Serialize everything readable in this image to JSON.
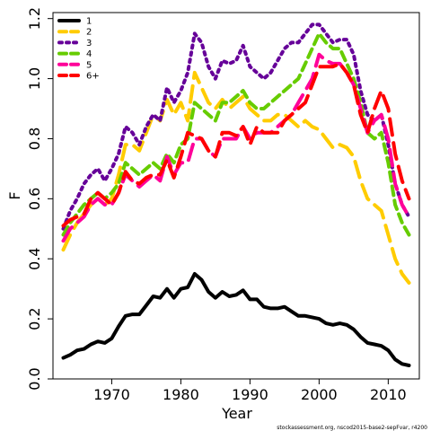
{
  "chart_data": {
    "type": "line",
    "xlabel": "Year",
    "ylabel": "F",
    "xlim": [
      1961.5,
      2014.5
    ],
    "ylim": [
      0.0,
      1.22
    ],
    "xticks": [
      1970,
      1980,
      1990,
      2000,
      2010
    ],
    "yticks": [
      0.0,
      0.2,
      0.4,
      0.6,
      0.8,
      1.0,
      1.2
    ],
    "ytick_labels": [
      "0.0",
      "0.2",
      "0.4",
      "0.6",
      "0.8",
      "1.0",
      "1.2"
    ],
    "footer": "stockassessment.org, nscod2015-base2-sepFvar, r4200",
    "legend_position": "top-left",
    "x": [
      1963,
      1964,
      1965,
      1966,
      1967,
      1968,
      1969,
      1970,
      1971,
      1972,
      1973,
      1974,
      1975,
      1976,
      1977,
      1978,
      1979,
      1980,
      1981,
      1982,
      1983,
      1984,
      1985,
      1986,
      1987,
      1988,
      1989,
      1990,
      1991,
      1992,
      1993,
      1994,
      1995,
      1996,
      1997,
      1998,
      1999,
      2000,
      2001,
      2002,
      2003,
      2004,
      2005,
      2006,
      2007,
      2008,
      2009,
      2010,
      2011,
      2012,
      2013
    ],
    "series": [
      {
        "name": "1",
        "color": "#000000",
        "dash": "solid",
        "values": [
          0.07,
          0.08,
          0.095,
          0.1,
          0.115,
          0.125,
          0.12,
          0.135,
          0.175,
          0.21,
          0.215,
          0.215,
          0.245,
          0.275,
          0.27,
          0.3,
          0.27,
          0.3,
          0.305,
          0.35,
          0.33,
          0.29,
          0.27,
          0.29,
          0.275,
          0.28,
          0.295,
          0.265,
          0.265,
          0.24,
          0.235,
          0.235,
          0.24,
          0.225,
          0.21,
          0.21,
          0.205,
          0.2,
          0.185,
          0.18,
          0.185,
          0.18,
          0.165,
          0.14,
          0.12,
          0.115,
          0.11,
          0.095,
          0.065,
          0.05,
          0.045
        ]
      },
      {
        "name": "2",
        "color": "#FFCC00",
        "dash": "longdash",
        "values": [
          0.43,
          0.48,
          0.52,
          0.55,
          0.58,
          0.6,
          0.58,
          0.6,
          0.68,
          0.78,
          0.78,
          0.76,
          0.82,
          0.88,
          0.86,
          0.93,
          0.88,
          0.92,
          0.86,
          1.02,
          0.97,
          0.92,
          0.9,
          0.93,
          0.9,
          0.92,
          0.94,
          0.9,
          0.88,
          0.86,
          0.86,
          0.88,
          0.88,
          0.86,
          0.84,
          0.86,
          0.84,
          0.83,
          0.8,
          0.77,
          0.78,
          0.77,
          0.74,
          0.66,
          0.6,
          0.58,
          0.56,
          0.48,
          0.4,
          0.35,
          0.32
        ]
      },
      {
        "name": "3",
        "color": "#660099",
        "dash": "dot",
        "values": [
          0.5,
          0.56,
          0.6,
          0.65,
          0.68,
          0.7,
          0.66,
          0.7,
          0.75,
          0.84,
          0.82,
          0.78,
          0.84,
          0.88,
          0.86,
          0.97,
          0.92,
          0.96,
          1.02,
          1.15,
          1.12,
          1.04,
          1.0,
          1.06,
          1.05,
          1.06,
          1.11,
          1.04,
          1.02,
          1.0,
          1.02,
          1.06,
          1.1,
          1.12,
          1.12,
          1.15,
          1.18,
          1.18,
          1.15,
          1.12,
          1.13,
          1.13,
          1.08,
          0.96,
          0.88,
          0.86,
          0.88,
          0.78,
          0.65,
          0.58,
          0.54
        ]
      },
      {
        "name": "4",
        "color": "#66CC00",
        "dash": "dash",
        "values": [
          0.48,
          0.52,
          0.55,
          0.58,
          0.6,
          0.62,
          0.6,
          0.62,
          0.65,
          0.72,
          0.7,
          0.68,
          0.7,
          0.72,
          0.7,
          0.75,
          0.72,
          0.78,
          0.8,
          0.92,
          0.9,
          0.88,
          0.86,
          0.92,
          0.92,
          0.94,
          0.96,
          0.92,
          0.9,
          0.9,
          0.92,
          0.94,
          0.96,
          0.98,
          1.0,
          1.05,
          1.1,
          1.15,
          1.12,
          1.1,
          1.1,
          1.05,
          1.0,
          0.92,
          0.82,
          0.8,
          0.82,
          0.72,
          0.58,
          0.52,
          0.48
        ]
      },
      {
        "name": "5",
        "color": "#FF0099",
        "dash": "longdash",
        "values": [
          0.46,
          0.5,
          0.52,
          0.54,
          0.58,
          0.6,
          0.58,
          0.58,
          0.62,
          0.68,
          0.66,
          0.64,
          0.66,
          0.68,
          0.66,
          0.74,
          0.68,
          0.72,
          0.72,
          0.8,
          0.8,
          0.76,
          0.74,
          0.8,
          0.8,
          0.8,
          0.84,
          0.8,
          0.82,
          0.82,
          0.82,
          0.84,
          0.86,
          0.88,
          0.92,
          0.96,
          1.0,
          1.08,
          1.06,
          1.05,
          1.05,
          1.02,
          0.98,
          0.9,
          0.82,
          0.86,
          0.88,
          0.8,
          0.65,
          0.58,
          0.54
        ]
      },
      {
        "name": "6+",
        "color": "#FF0000",
        "dash": "longdash",
        "values": [
          0.51,
          0.53,
          0.54,
          0.55,
          0.6,
          0.62,
          0.6,
          0.58,
          0.62,
          0.69,
          0.66,
          0.65,
          0.67,
          0.68,
          0.68,
          0.73,
          0.67,
          0.74,
          0.82,
          0.81,
          0.8,
          0.76,
          0.74,
          0.82,
          0.82,
          0.81,
          0.84,
          0.78,
          0.84,
          0.82,
          0.82,
          0.82,
          0.86,
          0.88,
          0.9,
          0.92,
          0.98,
          1.04,
          1.04,
          1.04,
          1.05,
          1.02,
          0.98,
          0.88,
          0.82,
          0.9,
          0.96,
          0.9,
          0.75,
          0.66,
          0.6
        ]
      }
    ]
  }
}
